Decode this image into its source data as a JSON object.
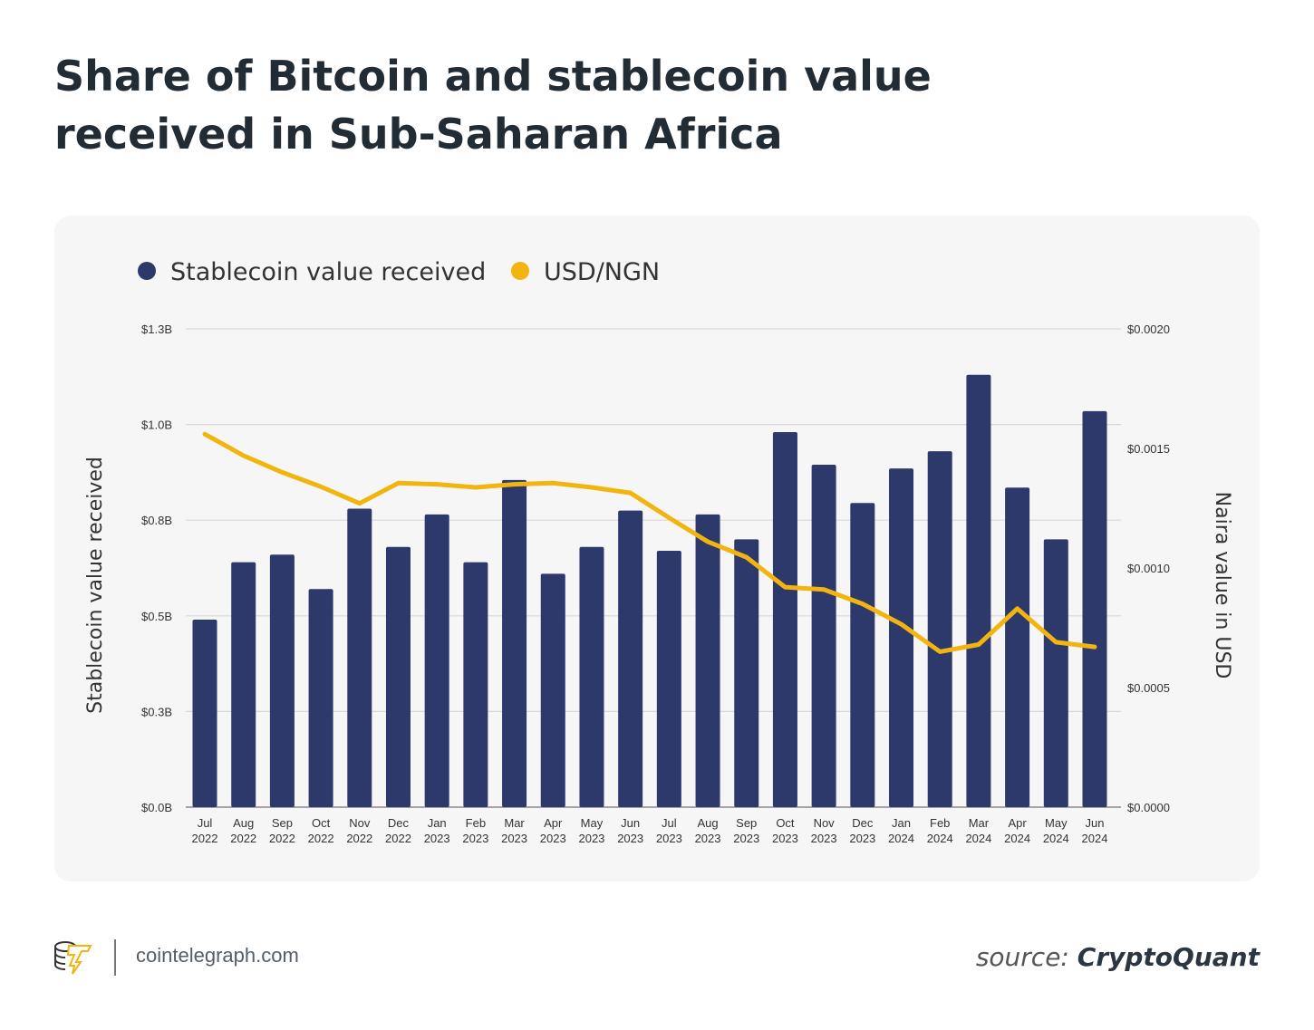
{
  "title": "Share of Bitcoin and stablecoin value received in Sub-Saharan Africa",
  "footer": {
    "site": "cointelegraph.com",
    "source_label": "source:",
    "source_name": "CryptoQuant"
  },
  "chart_data": {
    "type": "bar+line",
    "title": "Share of Bitcoin and stablecoin value received in Sub-Saharan Africa",
    "legend_placement": "top-left",
    "grid": true,
    "categories": [
      [
        "Jul",
        "2022"
      ],
      [
        "Aug",
        "2022"
      ],
      [
        "Sep",
        "2022"
      ],
      [
        "Oct",
        "2022"
      ],
      [
        "Nov",
        "2022"
      ],
      [
        "Dec",
        "2022"
      ],
      [
        "Jan",
        "2023"
      ],
      [
        "Feb",
        "2023"
      ],
      [
        "Mar",
        "2023"
      ],
      [
        "Apr",
        "2023"
      ],
      [
        "May",
        "2023"
      ],
      [
        "Jun",
        "2023"
      ],
      [
        "Jul",
        "2023"
      ],
      [
        "Aug",
        "2023"
      ],
      [
        "Sep",
        "2023"
      ],
      [
        "Oct",
        "2023"
      ],
      [
        "Nov",
        "2023"
      ],
      [
        "Dec",
        "2023"
      ],
      [
        "Jan",
        "2024"
      ],
      [
        "Feb",
        "2024"
      ],
      [
        "Mar",
        "2024"
      ],
      [
        "Apr",
        "2024"
      ],
      [
        "May",
        "2024"
      ],
      [
        "Jun",
        "2024"
      ]
    ],
    "y_left": {
      "label": "Stablecoin value received",
      "lim": [
        0,
        1.25
      ],
      "unit": "B USD",
      "ticks": [
        0,
        0.25,
        0.5,
        0.75,
        1.0,
        1.25
      ],
      "tick_labels": [
        "$0.0B",
        "$0.3B",
        "$0.5B",
        "$0.8B",
        "$1.0B",
        "$1.3B"
      ]
    },
    "y_right": {
      "label": "Naira value in USD",
      "lim": [
        0,
        0.002
      ],
      "ticks": [
        0,
        0.0005,
        0.001,
        0.0015,
        0.002
      ],
      "tick_labels": [
        "$0.0000",
        "$0.0005",
        "$0.0010",
        "$0.0015",
        "$0.0020"
      ]
    },
    "series": [
      {
        "name": "Stablecoin value received",
        "type": "bar",
        "axis": "left",
        "color": "#2d386b",
        "values": [
          0.49,
          0.64,
          0.66,
          0.57,
          0.78,
          0.68,
          0.765,
          0.64,
          0.855,
          0.61,
          0.68,
          0.775,
          0.67,
          0.765,
          0.7,
          0.98,
          0.895,
          0.795,
          0.885,
          0.93,
          1.13,
          0.835,
          0.7,
          1.035
        ]
      },
      {
        "name": "USD/NGN",
        "type": "line",
        "axis": "right",
        "color": "#f2b50f",
        "values": [
          0.00156,
          0.00147,
          0.0014,
          0.00134,
          0.00127,
          0.001355,
          0.00135,
          0.001337,
          0.00135,
          0.001355,
          0.001337,
          0.001314,
          0.00121,
          0.00111,
          0.001045,
          0.00092,
          0.00091,
          0.00085,
          0.000765,
          0.00065,
          0.00068,
          0.00083,
          0.00069,
          0.00067
        ]
      }
    ]
  }
}
